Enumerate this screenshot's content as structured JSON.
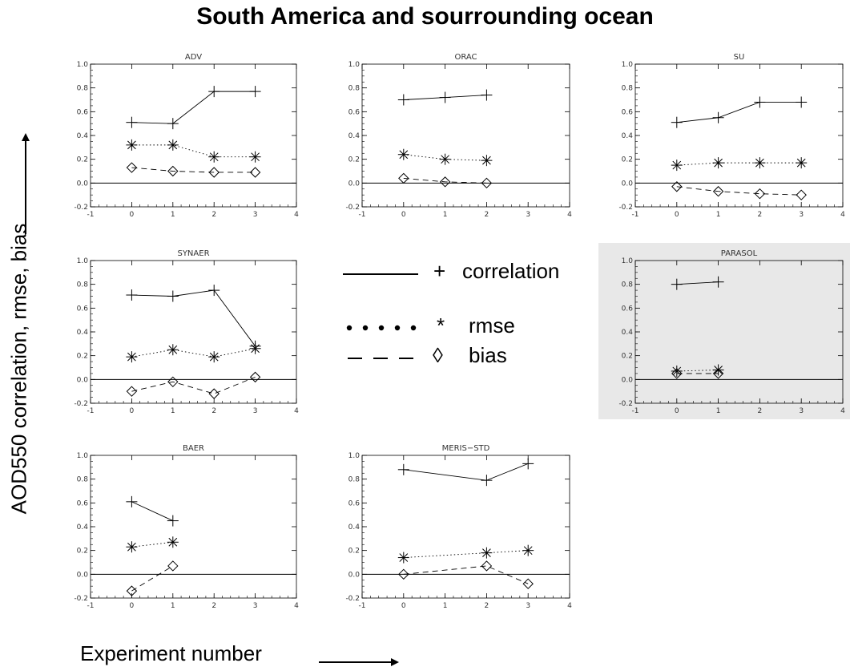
{
  "title": "South America and sourrounding ocean",
  "ylabel": "AOD550 correlation, rmse, bias",
  "xlabel": "Experiment number",
  "legend": {
    "items": [
      {
        "series": "correlation",
        "symbol": "+",
        "label": "correlation",
        "line": "solid"
      },
      {
        "series": "rmse",
        "symbol": "*",
        "label": "rmse",
        "line": "dotted"
      },
      {
        "series": "bias",
        "symbol": "◊",
        "label": "bias",
        "line": "dashed"
      }
    ]
  },
  "colors": {
    "line": "#000000",
    "highlight_panel_bg": "#e8e8e8"
  },
  "chart_data": [
    {
      "type": "line",
      "title": "ADV",
      "xlim": [
        -1,
        4
      ],
      "ylim": [
        -0.2,
        1.0
      ],
      "xticks": [
        "-1",
        "0",
        "1",
        "2",
        "3",
        "4"
      ],
      "yticks": [
        "-0.2",
        "0.0",
        "0.2",
        "0.4",
        "0.6",
        "0.8",
        "1.0"
      ],
      "highlighted": false,
      "series": [
        {
          "name": "correlation",
          "x": [
            0,
            1,
            2,
            3
          ],
          "values": [
            0.51,
            0.5,
            0.77,
            0.77
          ]
        },
        {
          "name": "rmse",
          "x": [
            0,
            1,
            2,
            3
          ],
          "values": [
            0.32,
            0.32,
            0.22,
            0.22
          ]
        },
        {
          "name": "bias",
          "x": [
            0,
            1,
            2,
            3
          ],
          "values": [
            0.13,
            0.1,
            0.09,
            0.09
          ]
        }
      ]
    },
    {
      "type": "line",
      "title": "ORAC",
      "xlim": [
        -1,
        4
      ],
      "ylim": [
        -0.2,
        1.0
      ],
      "xticks": [
        "-1",
        "0",
        "1",
        "2",
        "3",
        "4"
      ],
      "yticks": [
        "-0.2",
        "0.0",
        "0.2",
        "0.4",
        "0.6",
        "0.8",
        "1.0"
      ],
      "highlighted": false,
      "series": [
        {
          "name": "correlation",
          "x": [
            0,
            1,
            2
          ],
          "values": [
            0.7,
            0.72,
            0.74
          ]
        },
        {
          "name": "rmse",
          "x": [
            0,
            1,
            2
          ],
          "values": [
            0.24,
            0.2,
            0.19
          ]
        },
        {
          "name": "bias",
          "x": [
            0,
            1,
            2
          ],
          "values": [
            0.04,
            0.01,
            0.0
          ]
        }
      ]
    },
    {
      "type": "line",
      "title": "SU",
      "xlim": [
        -1,
        4
      ],
      "ylim": [
        -0.2,
        1.0
      ],
      "xticks": [
        "-1",
        "0",
        "1",
        "2",
        "3",
        "4"
      ],
      "yticks": [
        "-0.2",
        "0.0",
        "0.2",
        "0.4",
        "0.6",
        "0.8",
        "1.0"
      ],
      "highlighted": false,
      "series": [
        {
          "name": "correlation",
          "x": [
            0,
            1,
            2,
            3
          ],
          "values": [
            0.51,
            0.55,
            0.68,
            0.68
          ]
        },
        {
          "name": "rmse",
          "x": [
            0,
            1,
            2,
            3
          ],
          "values": [
            0.15,
            0.17,
            0.17,
            0.17
          ]
        },
        {
          "name": "bias",
          "x": [
            0,
            1,
            2,
            3
          ],
          "values": [
            -0.03,
            -0.07,
            -0.09,
            -0.1
          ]
        }
      ]
    },
    {
      "type": "line",
      "title": "SYNAER",
      "xlim": [
        -1,
        4
      ],
      "ylim": [
        -0.2,
        1.0
      ],
      "xticks": [
        "-1",
        "0",
        "1",
        "2",
        "3",
        "4"
      ],
      "yticks": [
        "-0.2",
        "0.0",
        "0.2",
        "0.4",
        "0.6",
        "0.8",
        "1.0"
      ],
      "highlighted": false,
      "series": [
        {
          "name": "correlation",
          "x": [
            0,
            1,
            2,
            3
          ],
          "values": [
            0.71,
            0.7,
            0.75,
            0.28
          ]
        },
        {
          "name": "rmse",
          "x": [
            0,
            1,
            2,
            3
          ],
          "values": [
            0.19,
            0.25,
            0.19,
            0.26
          ]
        },
        {
          "name": "bias",
          "x": [
            0,
            1,
            2,
            3
          ],
          "values": [
            -0.1,
            -0.02,
            -0.12,
            0.02
          ]
        }
      ]
    },
    {
      "type": "line",
      "title": "PARASOL",
      "xlim": [
        -1,
        4
      ],
      "ylim": [
        -0.2,
        1.0
      ],
      "xticks": [
        "-1",
        "0",
        "1",
        "2",
        "3",
        "4"
      ],
      "yticks": [
        "-0.2",
        "0.0",
        "0.2",
        "0.4",
        "0.6",
        "0.8",
        "1.0"
      ],
      "highlighted": true,
      "series": [
        {
          "name": "correlation",
          "x": [
            0,
            1
          ],
          "values": [
            0.8,
            0.82
          ]
        },
        {
          "name": "rmse",
          "x": [
            0,
            1
          ],
          "values": [
            0.07,
            0.08
          ]
        },
        {
          "name": "bias",
          "x": [
            0,
            1
          ],
          "values": [
            0.05,
            0.05
          ]
        }
      ]
    },
    {
      "type": "line",
      "title": "BAER",
      "xlim": [
        -1,
        4
      ],
      "ylim": [
        -0.2,
        1.0
      ],
      "xticks": [
        "-1",
        "0",
        "1",
        "2",
        "3",
        "4"
      ],
      "yticks": [
        "-0.2",
        "0.0",
        "0.2",
        "0.4",
        "0.6",
        "0.8",
        "1.0"
      ],
      "highlighted": false,
      "series": [
        {
          "name": "correlation",
          "x": [
            0,
            1
          ],
          "values": [
            0.61,
            0.45
          ]
        },
        {
          "name": "rmse",
          "x": [
            0,
            1
          ],
          "values": [
            0.23,
            0.27
          ]
        },
        {
          "name": "bias",
          "x": [
            0,
            1
          ],
          "values": [
            -0.14,
            0.07
          ]
        }
      ]
    },
    {
      "type": "line",
      "title": "MERIS−STD",
      "xlim": [
        -1,
        4
      ],
      "ylim": [
        -0.2,
        1.0
      ],
      "xticks": [
        "-1",
        "0",
        "1",
        "2",
        "3",
        "4"
      ],
      "yticks": [
        "-0.2",
        "0.0",
        "0.2",
        "0.4",
        "0.6",
        "0.8",
        "1.0"
      ],
      "highlighted": false,
      "series": [
        {
          "name": "correlation",
          "x": [
            0,
            2,
            3
          ],
          "values": [
            0.88,
            0.79,
            0.93
          ]
        },
        {
          "name": "rmse",
          "x": [
            0,
            2,
            3
          ],
          "values": [
            0.14,
            0.18,
            0.2
          ]
        },
        {
          "name": "bias",
          "x": [
            0,
            2,
            3
          ],
          "values": [
            0.0,
            0.07,
            -0.08
          ]
        }
      ]
    }
  ]
}
